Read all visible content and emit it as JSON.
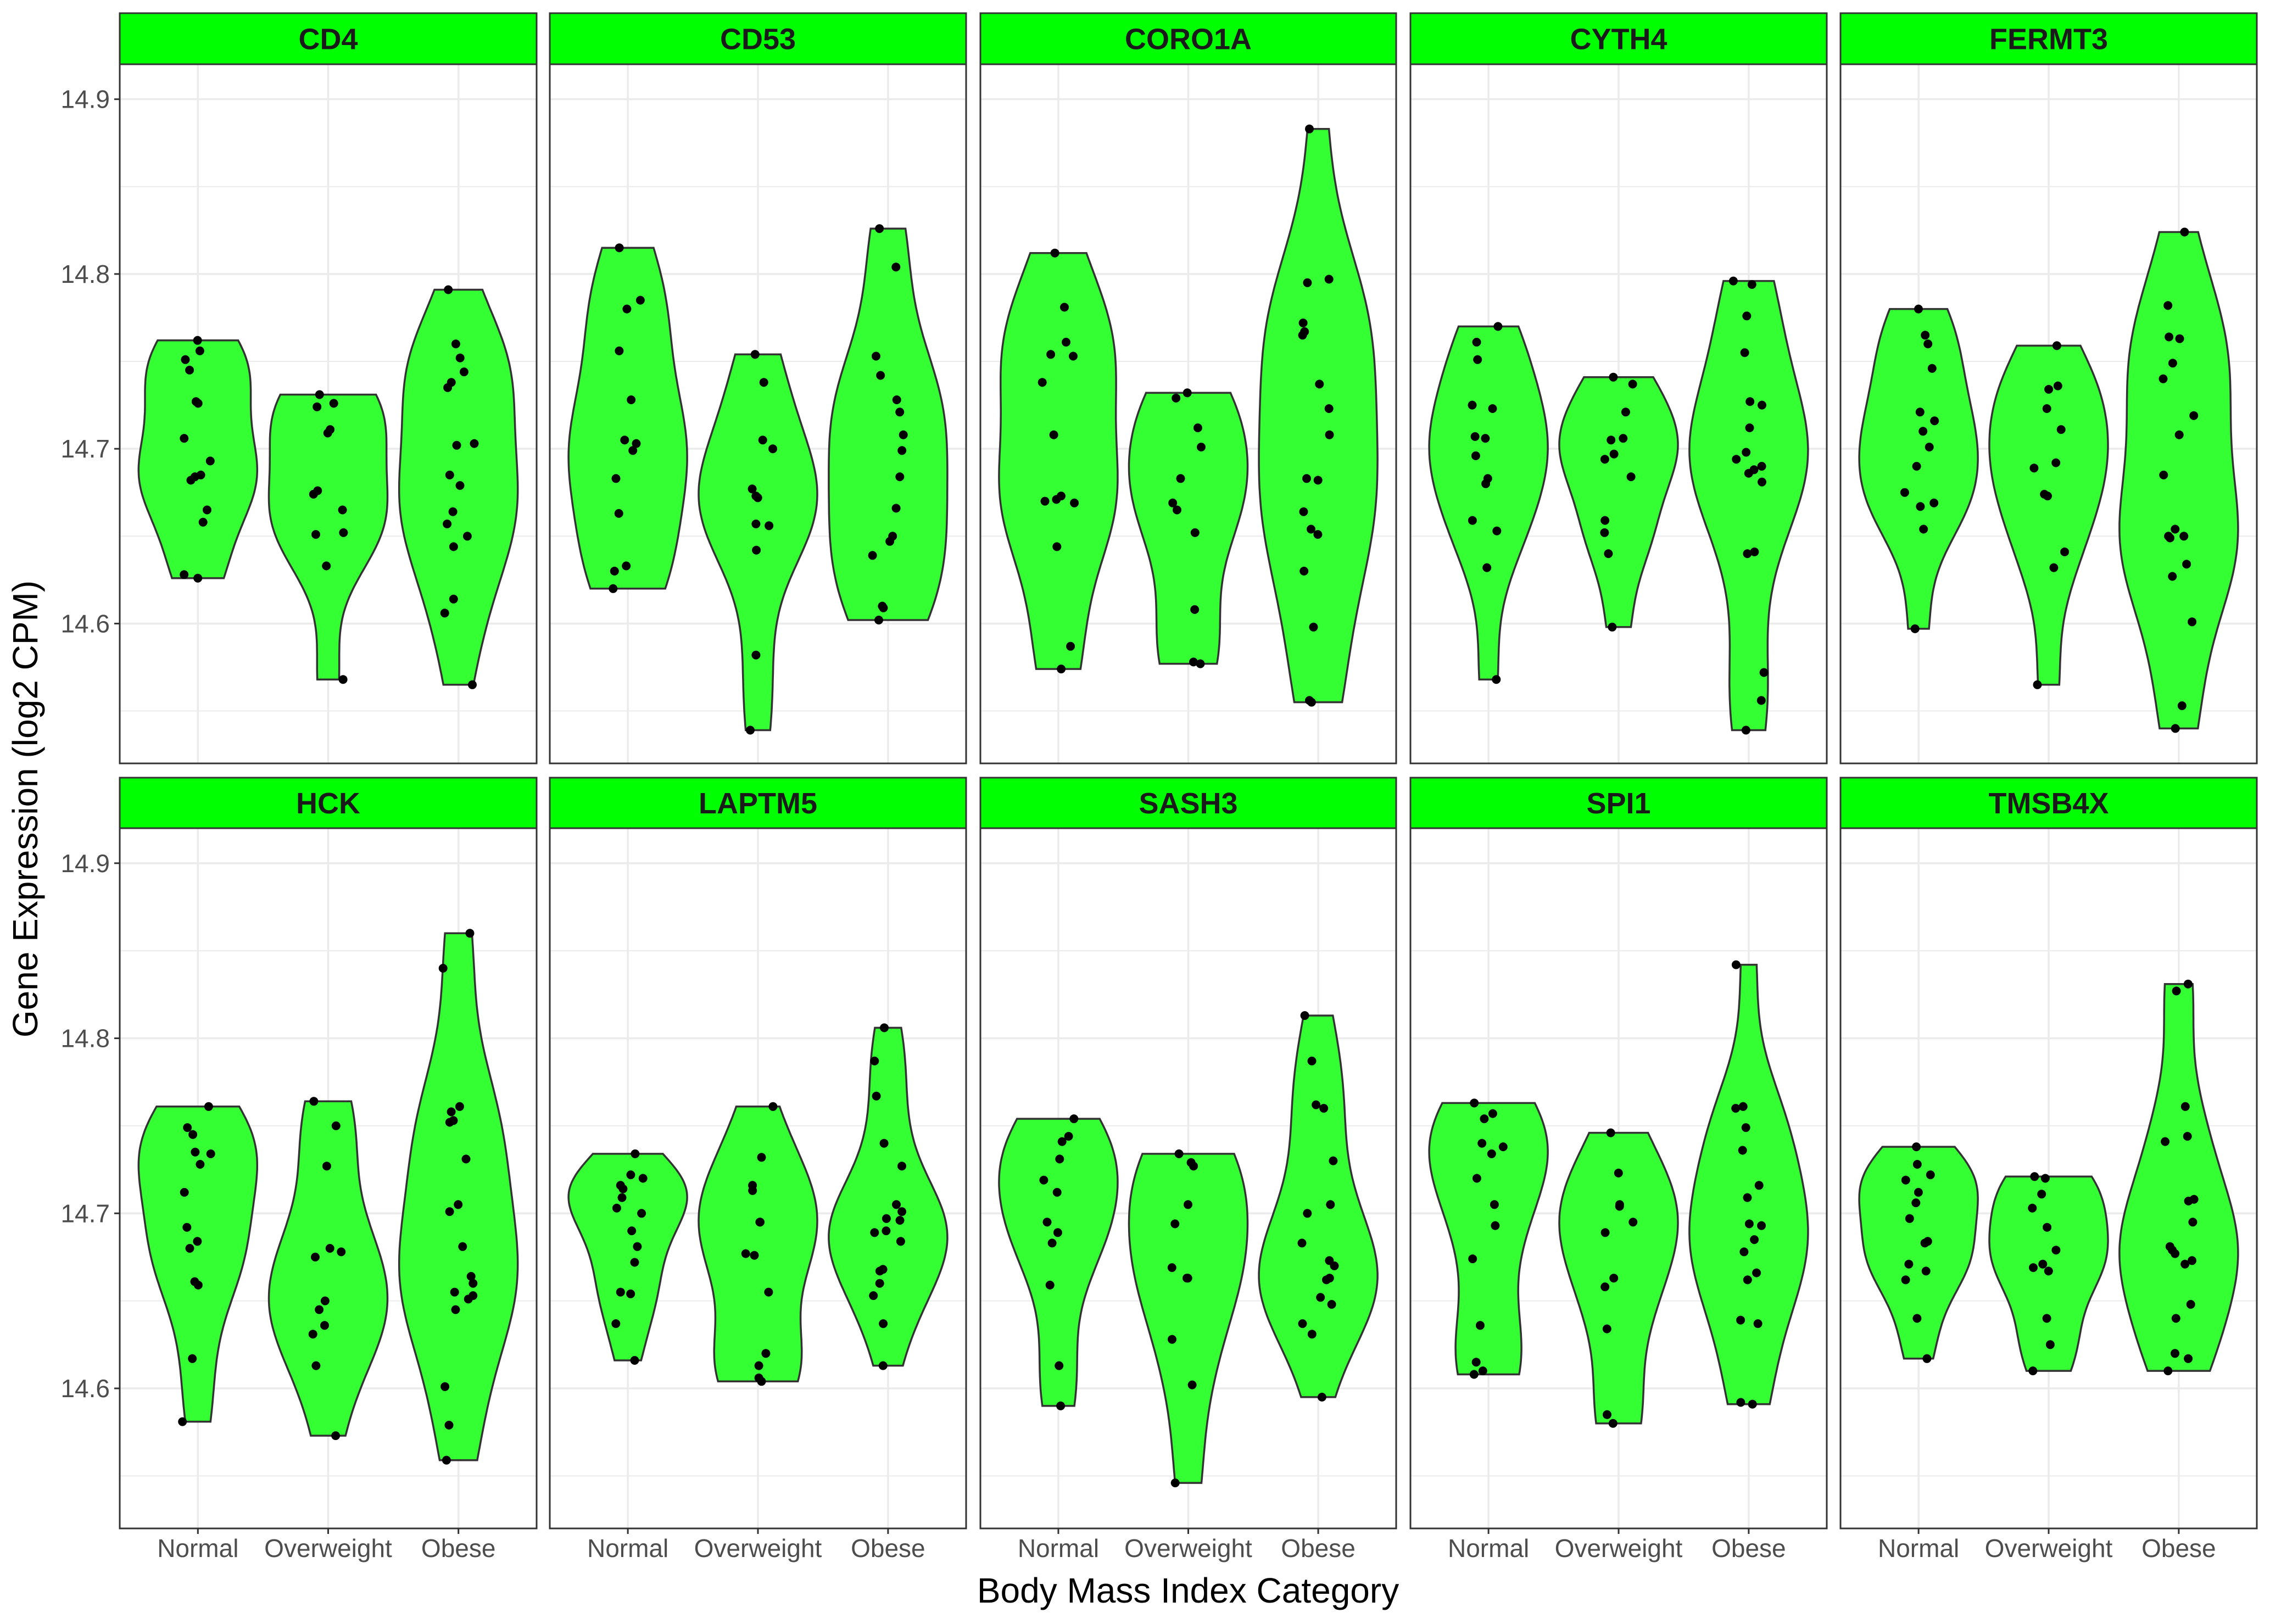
{
  "chart_data": {
    "type": "violin",
    "xlabel": "Body Mass Index Category",
    "ylabel": "Gene Expression (log2 CPM)",
    "categories": [
      "Normal",
      "Overweight",
      "Obese"
    ],
    "y_ticks": [
      14.6,
      14.7,
      14.8,
      14.9
    ],
    "y_tick_labels": [
      "14.6",
      "14.7",
      "14.8",
      "14.9"
    ],
    "ylim": [
      14.52,
      14.92
    ],
    "grid": true,
    "legend": "none",
    "colors": {
      "strip_fill": "#00ff00",
      "violin_fill": "#33ff33",
      "violin_stroke": "#333333",
      "point": "#000000",
      "panel_border": "#333333",
      "grid": "#ebebeb"
    },
    "panels": [
      {
        "gene": "CD4",
        "groups": [
          {
            "category": "Normal",
            "points": [
              14.762,
              14.756,
              14.751,
              14.745,
              14.727,
              14.726,
              14.706,
              14.693,
              14.685,
              14.684,
              14.682,
              14.665,
              14.658,
              14.628,
              14.626
            ]
          },
          {
            "category": "Overweight",
            "points": [
              14.731,
              14.726,
              14.724,
              14.711,
              14.709,
              14.676,
              14.674,
              14.665,
              14.652,
              14.651,
              14.633,
              14.568
            ]
          },
          {
            "category": "Obese",
            "points": [
              14.791,
              14.76,
              14.752,
              14.744,
              14.738,
              14.735,
              14.703,
              14.702,
              14.685,
              14.679,
              14.664,
              14.657,
              14.65,
              14.644,
              14.614,
              14.606,
              14.565
            ]
          }
        ]
      },
      {
        "gene": "CD53",
        "groups": [
          {
            "category": "Normal",
            "points": [
              14.815,
              14.785,
              14.78,
              14.756,
              14.728,
              14.705,
              14.703,
              14.699,
              14.683,
              14.663,
              14.633,
              14.63,
              14.62
            ]
          },
          {
            "category": "Overweight",
            "points": [
              14.754,
              14.738,
              14.705,
              14.7,
              14.677,
              14.673,
              14.672,
              14.657,
              14.656,
              14.642,
              14.582,
              14.539
            ]
          },
          {
            "category": "Obese",
            "points": [
              14.826,
              14.804,
              14.753,
              14.742,
              14.728,
              14.721,
              14.708,
              14.699,
              14.684,
              14.666,
              14.65,
              14.647,
              14.639,
              14.61,
              14.609,
              14.602
            ]
          }
        ]
      },
      {
        "gene": "CORO1A",
        "groups": [
          {
            "category": "Normal",
            "points": [
              14.812,
              14.781,
              14.761,
              14.754,
              14.753,
              14.738,
              14.708,
              14.673,
              14.671,
              14.67,
              14.669,
              14.644,
              14.587,
              14.574
            ]
          },
          {
            "category": "Overweight",
            "points": [
              14.732,
              14.729,
              14.712,
              14.701,
              14.683,
              14.669,
              14.665,
              14.652,
              14.608,
              14.578,
              14.577
            ]
          },
          {
            "category": "Obese",
            "points": [
              14.883,
              14.797,
              14.795,
              14.772,
              14.767,
              14.765,
              14.737,
              14.723,
              14.708,
              14.683,
              14.682,
              14.664,
              14.654,
              14.651,
              14.63,
              14.598,
              14.556,
              14.555
            ]
          }
        ]
      },
      {
        "gene": "CYTH4",
        "groups": [
          {
            "category": "Normal",
            "points": [
              14.77,
              14.761,
              14.751,
              14.725,
              14.723,
              14.707,
              14.706,
              14.696,
              14.683,
              14.68,
              14.659,
              14.653,
              14.632,
              14.568
            ]
          },
          {
            "category": "Overweight",
            "points": [
              14.741,
              14.737,
              14.721,
              14.706,
              14.705,
              14.697,
              14.694,
              14.684,
              14.659,
              14.652,
              14.64,
              14.598
            ]
          },
          {
            "category": "Obese",
            "points": [
              14.796,
              14.794,
              14.776,
              14.755,
              14.727,
              14.725,
              14.712,
              14.698,
              14.694,
              14.69,
              14.688,
              14.686,
              14.681,
              14.641,
              14.64,
              14.572,
              14.556,
              14.539
            ]
          }
        ]
      },
      {
        "gene": "FERMT3",
        "groups": [
          {
            "category": "Normal",
            "points": [
              14.78,
              14.765,
              14.76,
              14.746,
              14.721,
              14.716,
              14.71,
              14.701,
              14.69,
              14.675,
              14.669,
              14.667,
              14.654,
              14.597
            ]
          },
          {
            "category": "Overweight",
            "points": [
              14.759,
              14.736,
              14.734,
              14.723,
              14.711,
              14.692,
              14.689,
              14.674,
              14.673,
              14.641,
              14.632,
              14.565
            ]
          },
          {
            "category": "Obese",
            "points": [
              14.824,
              14.782,
              14.764,
              14.763,
              14.749,
              14.74,
              14.719,
              14.708,
              14.685,
              14.654,
              14.65,
              14.65,
              14.649,
              14.634,
              14.627,
              14.601,
              14.553,
              14.54
            ]
          }
        ]
      },
      {
        "gene": "HCK",
        "groups": [
          {
            "category": "Normal",
            "points": [
              14.761,
              14.749,
              14.745,
              14.735,
              14.734,
              14.728,
              14.712,
              14.692,
              14.684,
              14.68,
              14.661,
              14.659,
              14.617,
              14.581
            ]
          },
          {
            "category": "Overweight",
            "points": [
              14.764,
              14.75,
              14.727,
              14.68,
              14.678,
              14.675,
              14.65,
              14.645,
              14.636,
              14.631,
              14.613,
              14.573
            ]
          },
          {
            "category": "Obese",
            "points": [
              14.86,
              14.84,
              14.761,
              14.758,
              14.753,
              14.752,
              14.731,
              14.705,
              14.701,
              14.681,
              14.664,
              14.66,
              14.655,
              14.653,
              14.651,
              14.645,
              14.601,
              14.579,
              14.559
            ]
          }
        ]
      },
      {
        "gene": "LAPTM5",
        "groups": [
          {
            "category": "Normal",
            "points": [
              14.734,
              14.722,
              14.72,
              14.716,
              14.714,
              14.709,
              14.703,
              14.7,
              14.69,
              14.681,
              14.672,
              14.655,
              14.654,
              14.637,
              14.616
            ]
          },
          {
            "category": "Overweight",
            "points": [
              14.761,
              14.732,
              14.716,
              14.713,
              14.695,
              14.695,
              14.677,
              14.676,
              14.655,
              14.62,
              14.613,
              14.606,
              14.604
            ]
          },
          {
            "category": "Obese",
            "points": [
              14.806,
              14.787,
              14.767,
              14.74,
              14.727,
              14.705,
              14.701,
              14.697,
              14.696,
              14.69,
              14.689,
              14.684,
              14.668,
              14.667,
              14.66,
              14.653,
              14.637,
              14.613
            ]
          }
        ]
      },
      {
        "gene": "SASH3",
        "groups": [
          {
            "category": "Normal",
            "points": [
              14.754,
              14.744,
              14.741,
              14.731,
              14.719,
              14.712,
              14.695,
              14.689,
              14.683,
              14.659,
              14.613,
              14.59
            ]
          },
          {
            "category": "Overweight",
            "points": [
              14.734,
              14.729,
              14.727,
              14.705,
              14.694,
              14.669,
              14.663,
              14.663,
              14.628,
              14.602,
              14.546
            ]
          },
          {
            "category": "Obese",
            "points": [
              14.813,
              14.787,
              14.762,
              14.76,
              14.73,
              14.705,
              14.7,
              14.683,
              14.673,
              14.67,
              14.663,
              14.662,
              14.652,
              14.648,
              14.637,
              14.631,
              14.595
            ]
          }
        ]
      },
      {
        "gene": "SPI1",
        "groups": [
          {
            "category": "Normal",
            "points": [
              14.763,
              14.757,
              14.754,
              14.74,
              14.738,
              14.734,
              14.72,
              14.705,
              14.693,
              14.674,
              14.636,
              14.615,
              14.61,
              14.608
            ]
          },
          {
            "category": "Overweight",
            "points": [
              14.746,
              14.723,
              14.705,
              14.704,
              14.695,
              14.689,
              14.663,
              14.658,
              14.634,
              14.585,
              14.58
            ]
          },
          {
            "category": "Obese",
            "points": [
              14.842,
              14.761,
              14.76,
              14.749,
              14.736,
              14.716,
              14.709,
              14.694,
              14.693,
              14.685,
              14.678,
              14.666,
              14.662,
              14.639,
              14.637,
              14.592,
              14.591
            ]
          }
        ]
      },
      {
        "gene": "TMSB4X",
        "groups": [
          {
            "category": "Normal",
            "points": [
              14.738,
              14.728,
              14.722,
              14.719,
              14.712,
              14.706,
              14.697,
              14.684,
              14.683,
              14.671,
              14.667,
              14.662,
              14.64,
              14.617
            ]
          },
          {
            "category": "Overweight",
            "points": [
              14.721,
              14.72,
              14.711,
              14.703,
              14.692,
              14.679,
              14.671,
              14.669,
              14.667,
              14.64,
              14.625,
              14.61
            ]
          },
          {
            "category": "Obese",
            "points": [
              14.831,
              14.827,
              14.761,
              14.744,
              14.741,
              14.708,
              14.707,
              14.695,
              14.681,
              14.679,
              14.677,
              14.673,
              14.671,
              14.648,
              14.64,
              14.62,
              14.617,
              14.61
            ]
          }
        ]
      }
    ]
  }
}
